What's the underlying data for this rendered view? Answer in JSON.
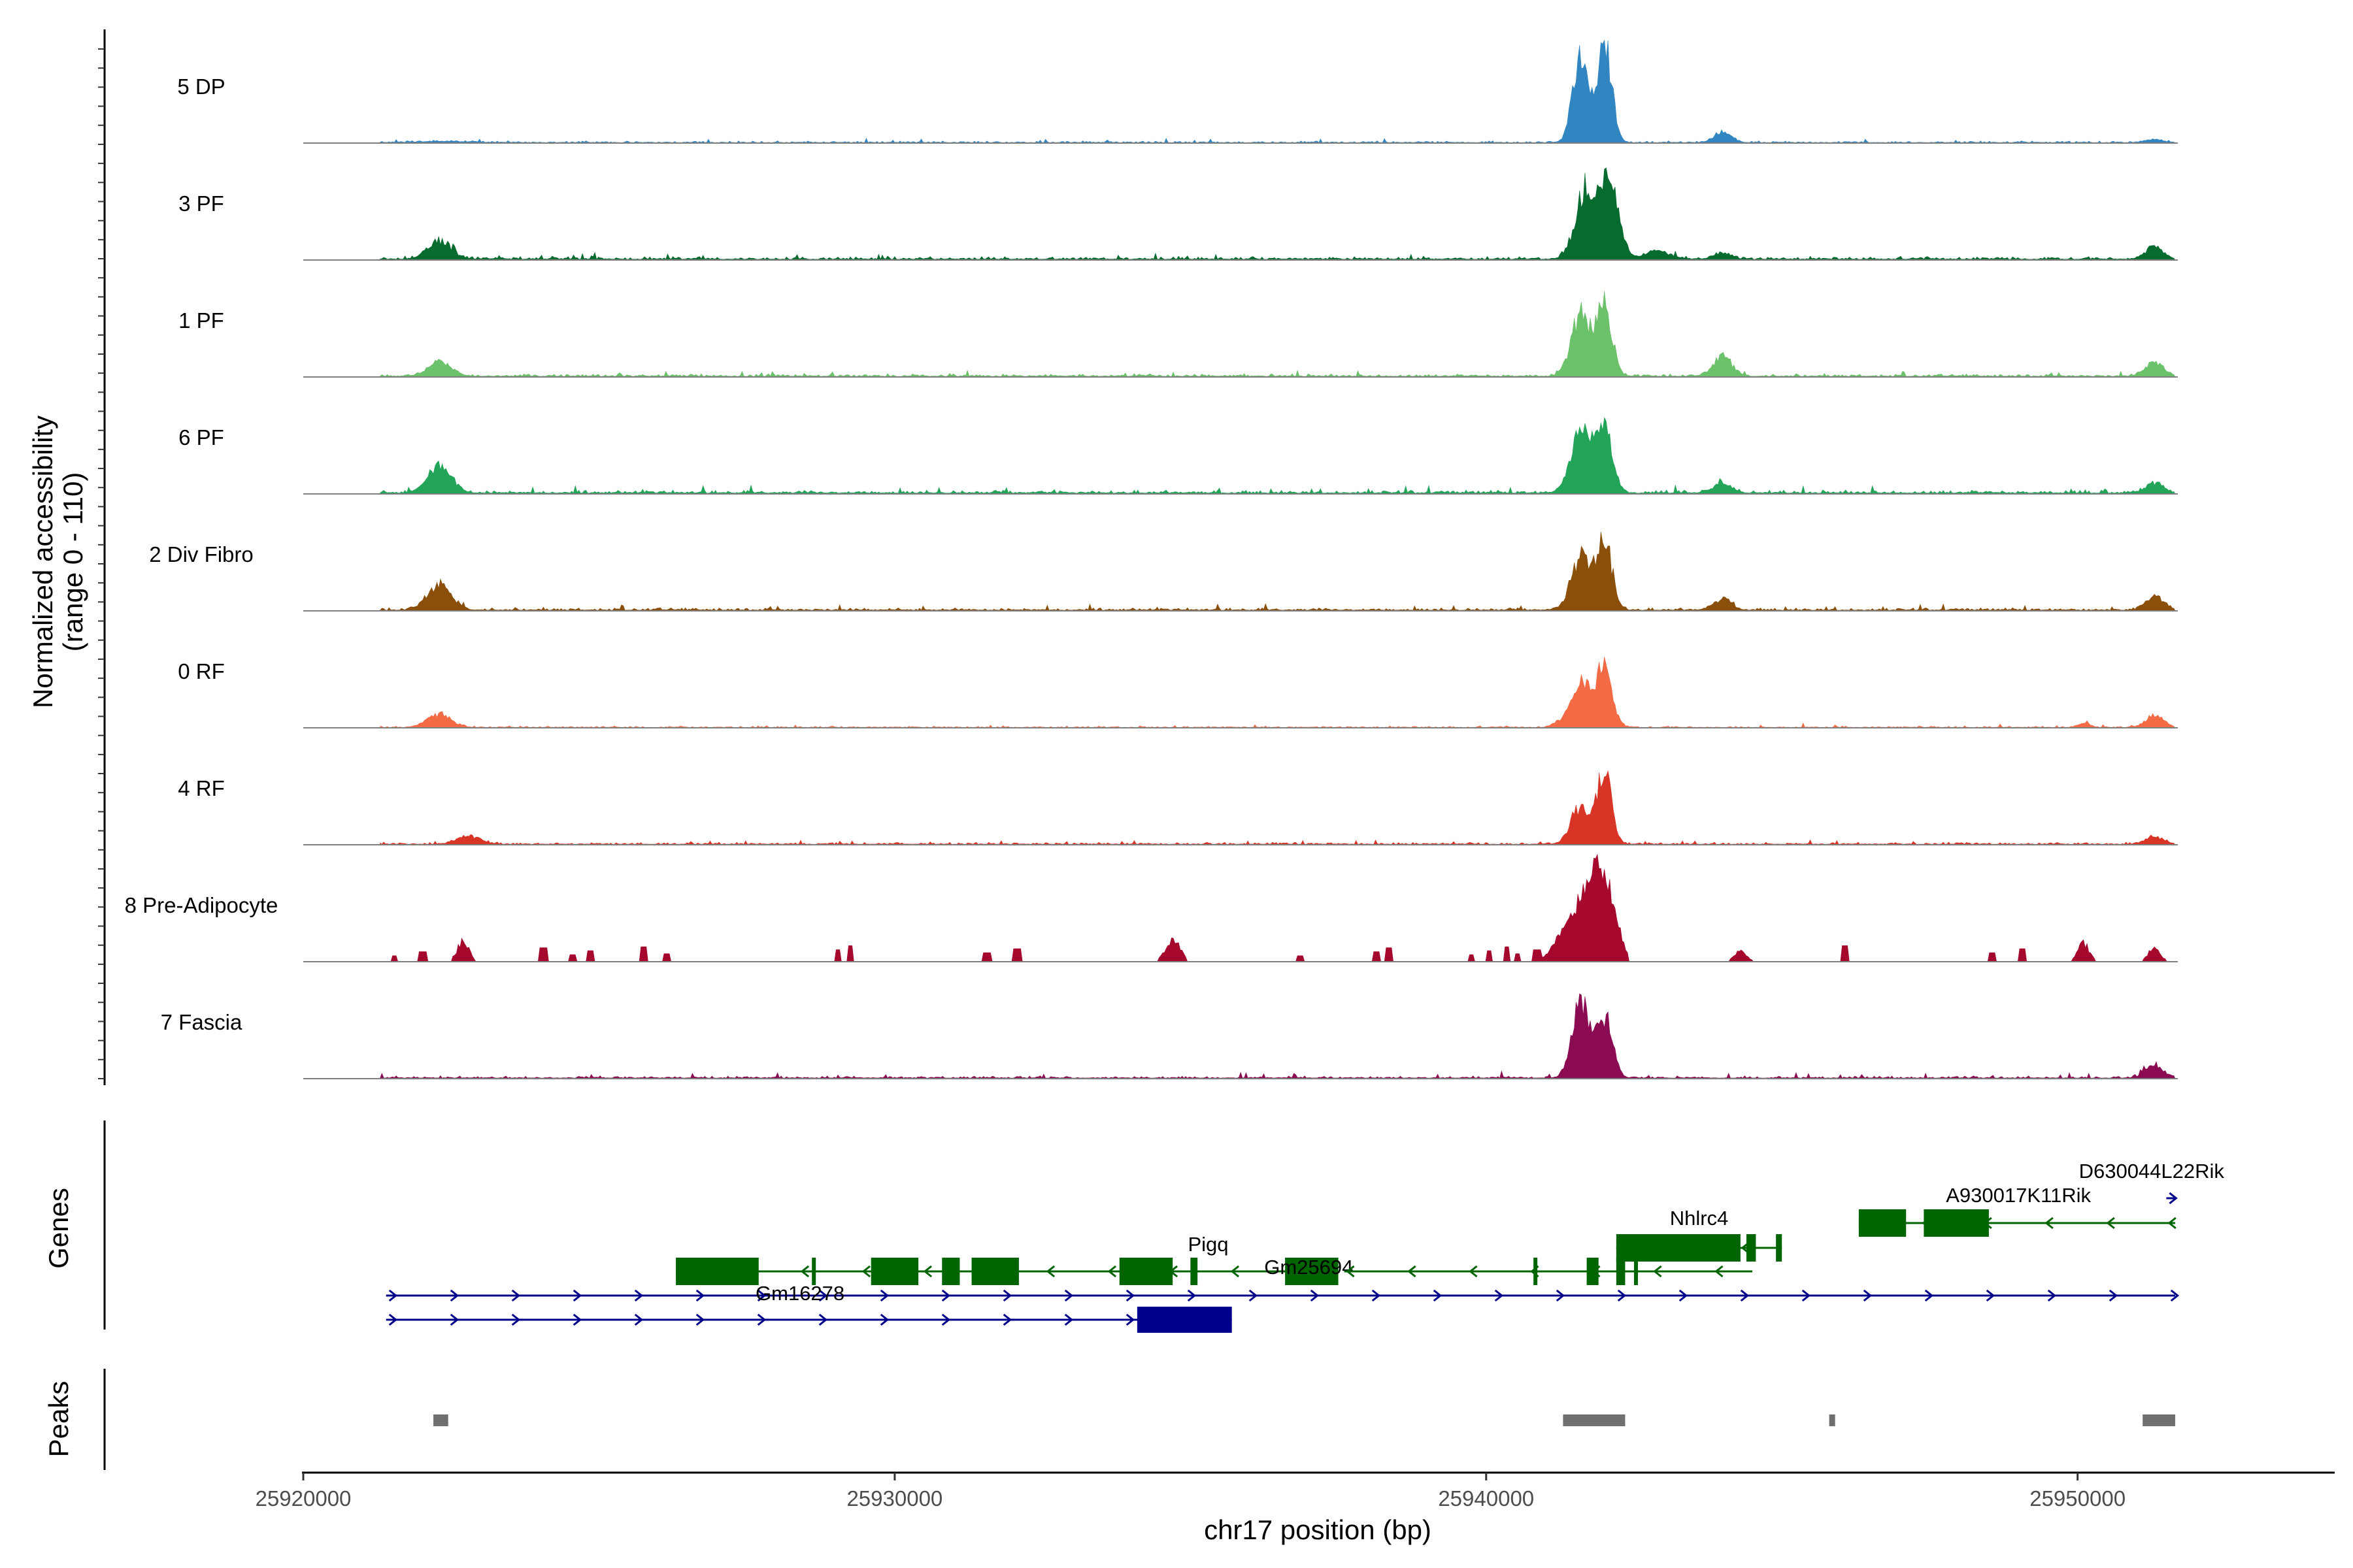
{
  "chart_data": {
    "type": "area",
    "chromosome": "chr17",
    "region": [
      25921300,
      25951650
    ],
    "xlim": [
      25920000,
      25953000
    ],
    "xlabel": "chr17 position (bp)",
    "ylabel_line1": "Normalized accessibility",
    "ylabel_line2": "(range 0 - 110)",
    "ylim": [
      0,
      110
    ],
    "x_ticks": [
      {
        "value": 25920000,
        "label": "25920000"
      },
      {
        "value": 25930000,
        "label": "25930000"
      },
      {
        "value": 25940000,
        "label": "25940000"
      },
      {
        "value": 25950000,
        "label": "25950000"
      }
    ],
    "series": [
      {
        "name": "5 DP",
        "color": "#3186c2",
        "base": 1.2,
        "sparse": false,
        "peaks": [
          [
            25922400,
            1,
            0.5
          ],
          [
            25941600,
            90,
            0.13
          ],
          [
            25942000,
            100,
            0.12
          ],
          [
            25944000,
            9,
            0.15
          ],
          [
            25951300,
            3,
            0.15
          ]
        ]
      },
      {
        "name": "3 PF",
        "color": "#066b2f",
        "base": 2.0,
        "sparse": false,
        "peaks": [
          [
            25922300,
            18,
            0.2
          ],
          [
            25941700,
            70,
            0.18
          ],
          [
            25942100,
            72,
            0.15
          ],
          [
            25942900,
            8,
            0.2
          ],
          [
            25944000,
            6,
            0.15
          ],
          [
            25951300,
            12,
            0.15
          ]
        ]
      },
      {
        "name": "1 PF",
        "color": "#6cc16b",
        "base": 1.7,
        "sparse": false,
        "peaks": [
          [
            25922300,
            14,
            0.2
          ],
          [
            25941600,
            62,
            0.16
          ],
          [
            25942000,
            68,
            0.13
          ],
          [
            25944000,
            20,
            0.15
          ],
          [
            25951300,
            14,
            0.15
          ]
        ]
      },
      {
        "name": "6 PF",
        "color": "#22a459",
        "base": 2.2,
        "sparse": false,
        "peaks": [
          [
            25922300,
            26,
            0.2
          ],
          [
            25941600,
            64,
            0.16
          ],
          [
            25942000,
            72,
            0.13
          ],
          [
            25944000,
            9,
            0.15
          ],
          [
            25951300,
            9,
            0.15
          ]
        ]
      },
      {
        "name": "2 Div Fibro",
        "color": "#8b4f0c",
        "base": 1.8,
        "sparse": false,
        "peaks": [
          [
            25922300,
            24,
            0.2
          ],
          [
            25941600,
            52,
            0.16
          ],
          [
            25942000,
            66,
            0.13
          ],
          [
            25944000,
            11,
            0.15
          ],
          [
            25951300,
            14,
            0.15
          ]
        ]
      },
      {
        "name": "0 RF",
        "color": "#f26b45",
        "base": 1.0,
        "sparse": false,
        "peaks": [
          [
            25922300,
            13,
            0.2
          ],
          [
            25941200,
            4,
            0.1
          ],
          [
            25941600,
            45,
            0.16
          ],
          [
            25942000,
            60,
            0.13
          ],
          [
            25950100,
            4,
            0.1
          ],
          [
            25951300,
            12,
            0.15
          ]
        ]
      },
      {
        "name": "4 RF",
        "color": "#d83527",
        "base": 1.4,
        "sparse": false,
        "peaks": [
          [
            25922800,
            8,
            0.2
          ],
          [
            25941600,
            38,
            0.16
          ],
          [
            25942000,
            72,
            0.12
          ],
          [
            25951300,
            7,
            0.15
          ]
        ]
      },
      {
        "name": "8 Pre-Adipocyte",
        "color": "#a5082c",
        "base": 0.0,
        "sparse": true,
        "peaks": [
          [
            25941300,
            18,
            0.2
          ],
          [
            25941700,
            55,
            0.25
          ],
          [
            25942000,
            60,
            0.2
          ],
          [
            25934700,
            23,
            0.12
          ],
          [
            25922700,
            20,
            0.1
          ],
          [
            25951300,
            14,
            0.1
          ],
          [
            25950100,
            18,
            0.1
          ],
          [
            25944300,
            12,
            0.1
          ]
        ]
      },
      {
        "name": "7 Fascia",
        "color": "#8b0b53",
        "base": 1.6,
        "sparse": false,
        "peaks": [
          [
            25941600,
            78,
            0.14
          ],
          [
            25942000,
            60,
            0.13
          ],
          [
            25951300,
            12,
            0.15
          ]
        ]
      }
    ],
    "genes_panel_label": "Genes",
    "peaks_panel_label": "Peaks",
    "genes": [
      {
        "name": "Pigq",
        "strand": "-",
        "color": "#006400",
        "row": 2,
        "start": 25926300,
        "end": 25937500,
        "exons": [
          [
            25926300,
            25927700
          ],
          [
            25928600,
            25928660
          ],
          [
            25929600,
            25930400
          ],
          [
            25930800,
            25931100
          ],
          [
            25931300,
            25932100
          ],
          [
            25933800,
            25934700
          ],
          [
            25935000,
            25935120
          ],
          [
            25936600,
            25937500
          ]
        ]
      },
      {
        "name": "Gm25694",
        "strand": "+",
        "color": "#00008b",
        "row": 2,
        "start": 25936600,
        "end": 25937500,
        "exons": [],
        "label_only": true
      },
      {
        "name": "Nhlrc4",
        "strand": "-",
        "color": "#006400",
        "row": 1,
        "start": 25942200,
        "end": 25945000,
        "exons": [
          [
            25942200,
            25944300
          ],
          [
            25944400,
            25944560
          ],
          [
            25944900,
            25945000
          ]
        ]
      },
      {
        "name": "Nhlrc4 (inner)",
        "strand": "-",
        "color": "#006400",
        "row": 2,
        "start": 25937600,
        "end": 25944500,
        "exons": [
          [
            25940800,
            25940860
          ],
          [
            25941700,
            25941900
          ],
          [
            25942200,
            25942350
          ],
          [
            25942500,
            25942560
          ]
        ],
        "hide_label": true
      },
      {
        "name": "Gm16278",
        "strand": "+",
        "color": "#00008b",
        "row": 3,
        "start": 25921400,
        "end": 25951650,
        "exons": []
      },
      {
        "name": "Gm16278 (inner)",
        "strand": "+",
        "color": "#00008b",
        "row": 4,
        "start": 25921400,
        "end": 25935700,
        "exons": [
          [
            25934100,
            25935700
          ]
        ],
        "hide_label": true
      },
      {
        "name": "A930017K11Rik",
        "strand": "-",
        "color": "#006400",
        "row": 0,
        "start": 25946300,
        "end": 25951650,
        "exons": [
          [
            25946300,
            25947100
          ],
          [
            25947400,
            25948500
          ]
        ]
      },
      {
        "name": "D630044L22Rik",
        "strand": "+",
        "color": "#00008b",
        "row": -1,
        "start": 25951500,
        "end": 25951650,
        "exons": []
      }
    ],
    "peak_regions": [
      [
        25922200,
        25922450
      ],
      [
        25941300,
        25942350
      ],
      [
        25945800,
        25945900
      ],
      [
        25951100,
        25951650
      ]
    ]
  }
}
